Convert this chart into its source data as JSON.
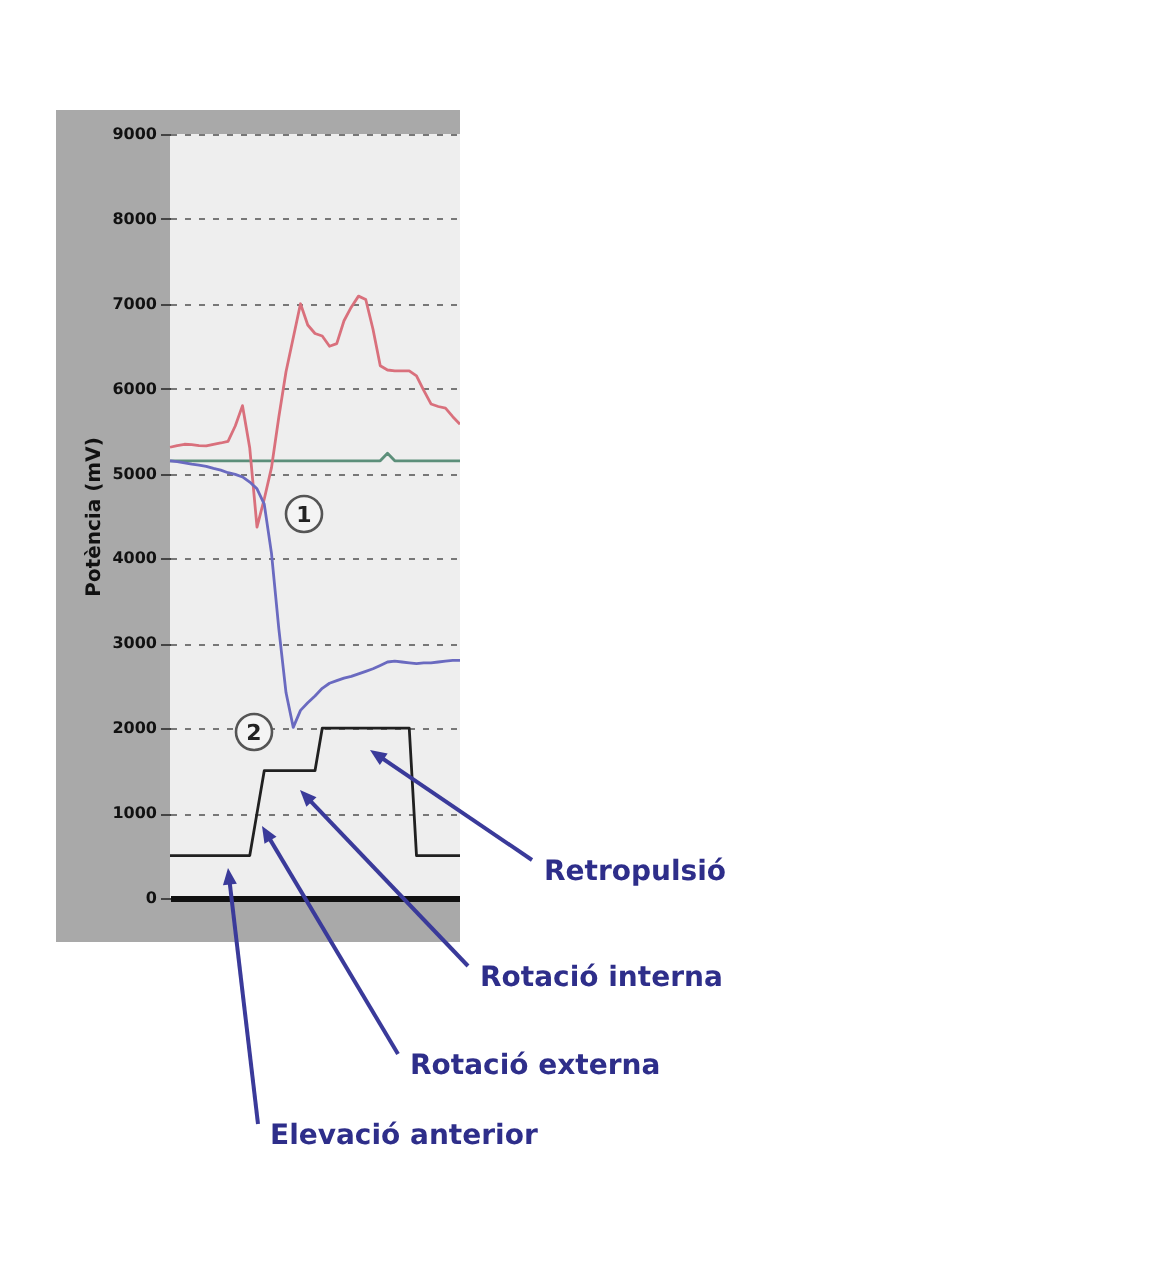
{
  "chart_data": {
    "type": "line",
    "ylabel": "Potència (mV)",
    "categories": [
      null,
      null,
      null,
      null,
      null,
      null,
      null,
      null,
      null,
      null,
      null,
      null,
      null,
      null,
      null,
      null,
      null,
      null,
      null,
      null,
      null,
      null,
      null,
      null,
      null,
      null,
      null,
      null,
      null,
      null,
      null,
      null,
      null,
      null,
      null,
      null,
      null,
      null,
      null,
      null,
      null
    ],
    "ylim": [
      0,
      9000
    ],
    "yticks": [
      0,
      1000,
      2000,
      3000,
      4000,
      5000,
      6000,
      7000,
      8000,
      9000
    ],
    "grid": "y",
    "tick_labels": "y",
    "marker": "none",
    "line_style": "solid",
    "series": [
      {
        "color": "#5c8f7a",
        "values": [
          5150,
          5150,
          5150,
          5150,
          5150,
          5150,
          5150,
          5150,
          5150,
          5150,
          5150,
          5150,
          5150,
          5150,
          5150,
          5150,
          5150,
          5150,
          5150,
          5150,
          5150,
          5150,
          5150,
          5150,
          5150,
          5150,
          5150,
          5150,
          5150,
          5150,
          5240,
          5150,
          5150,
          5150,
          5150,
          5150,
          5150,
          5150,
          5150,
          5150,
          5150
        ]
      },
      {
        "color": "#d9707c",
        "values": [
          5310,
          5330,
          5345,
          5340,
          5330,
          5325,
          5345,
          5360,
          5380,
          5560,
          5800,
          5300,
          4370,
          4700,
          5070,
          5660,
          6200,
          6600,
          7000,
          6750,
          6650,
          6620,
          6500,
          6530,
          6800,
          6960,
          7090,
          7050,
          6700,
          6270,
          6220,
          6210,
          6210,
          6210,
          6150,
          5980,
          5820,
          5790,
          5770,
          5670,
          5580
        ]
      },
      {
        "color": "#6a6ac0",
        "values": [
          5150,
          5140,
          5125,
          5110,
          5100,
          5085,
          5060,
          5040,
          5010,
          4990,
          4960,
          4900,
          4820,
          4640,
          4060,
          3180,
          2420,
          2010,
          2210,
          2300,
          2380,
          2470,
          2530,
          2560,
          2590,
          2610,
          2640,
          2670,
          2700,
          2740,
          2780,
          2790,
          2780,
          2770,
          2760,
          2770,
          2770,
          2780,
          2790,
          2800,
          2800
        ]
      },
      {
        "color": "#202020",
        "values": [
          500,
          500,
          500,
          500,
          500,
          500,
          500,
          500,
          500,
          500,
          500,
          500,
          1000,
          1500,
          1500,
          1500,
          1500,
          1500,
          1500,
          1500,
          1500,
          2000,
          2000,
          2000,
          2000,
          2000,
          2000,
          2000,
          2000,
          2000,
          2000,
          2000,
          2000,
          2000,
          500,
          500,
          500,
          500,
          500,
          500,
          500
        ]
      }
    ],
    "annotations": [
      "1",
      "2",
      "Elevació anterior",
      "Rotació externa",
      "Rotació interna",
      "Retropulsió"
    ]
  }
}
